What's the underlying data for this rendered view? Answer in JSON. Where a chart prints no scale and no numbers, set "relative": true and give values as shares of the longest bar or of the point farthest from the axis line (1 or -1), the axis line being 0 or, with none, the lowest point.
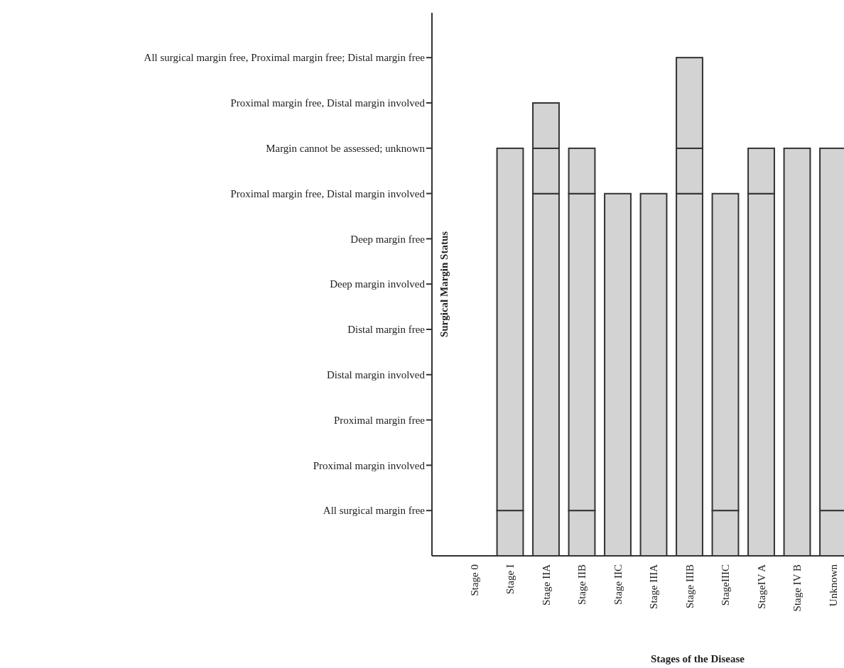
{
  "chart_data": {
    "type": "bar",
    "stacked": true,
    "relative": true,
    "xlabel": "Stages of the Disease",
    "ylabel": "Surgical Margin Status",
    "categories": [
      "Stage 0",
      "Stage I",
      "Stage IIA",
      "Stage  IIB",
      "Stage IIC",
      "Stage IIIA",
      "Stage IIIB",
      "StageIIIC",
      "StageIV A",
      "Stage IV B",
      "Unknown"
    ],
    "series": [
      {
        "color": "#d3d3d3",
        "values": [
          null,
          0.091,
          0.727,
          0.091,
          0.727,
          0.727,
          0.727,
          0.091,
          0.727,
          0.818,
          0.091
        ]
      },
      {
        "color": "#d3d3d3",
        "values": [
          null,
          0.727,
          0.091,
          0.636,
          null,
          null,
          0.091,
          0.636,
          0.091,
          null,
          0.727
        ]
      },
      {
        "color": "#d3d3d3",
        "values": [
          null,
          null,
          0.091,
          0.091,
          null,
          null,
          0.182,
          null,
          null,
          null,
          null
        ]
      }
    ],
    "annotations": [
      "All surgical margin free",
      "Proximal margin involved",
      "Proximal margin free",
      "Distal margin involved",
      "Distal margin free",
      "Deep margin involved",
      "Deep margin free",
      "Proximal margin free, Distal margin involved",
      "Margin cannot be assessed; unknown",
      "Proximal margin free, Distal margin involved",
      "All surgical margin free, Proximal margin free; Distal margin free"
    ]
  }
}
